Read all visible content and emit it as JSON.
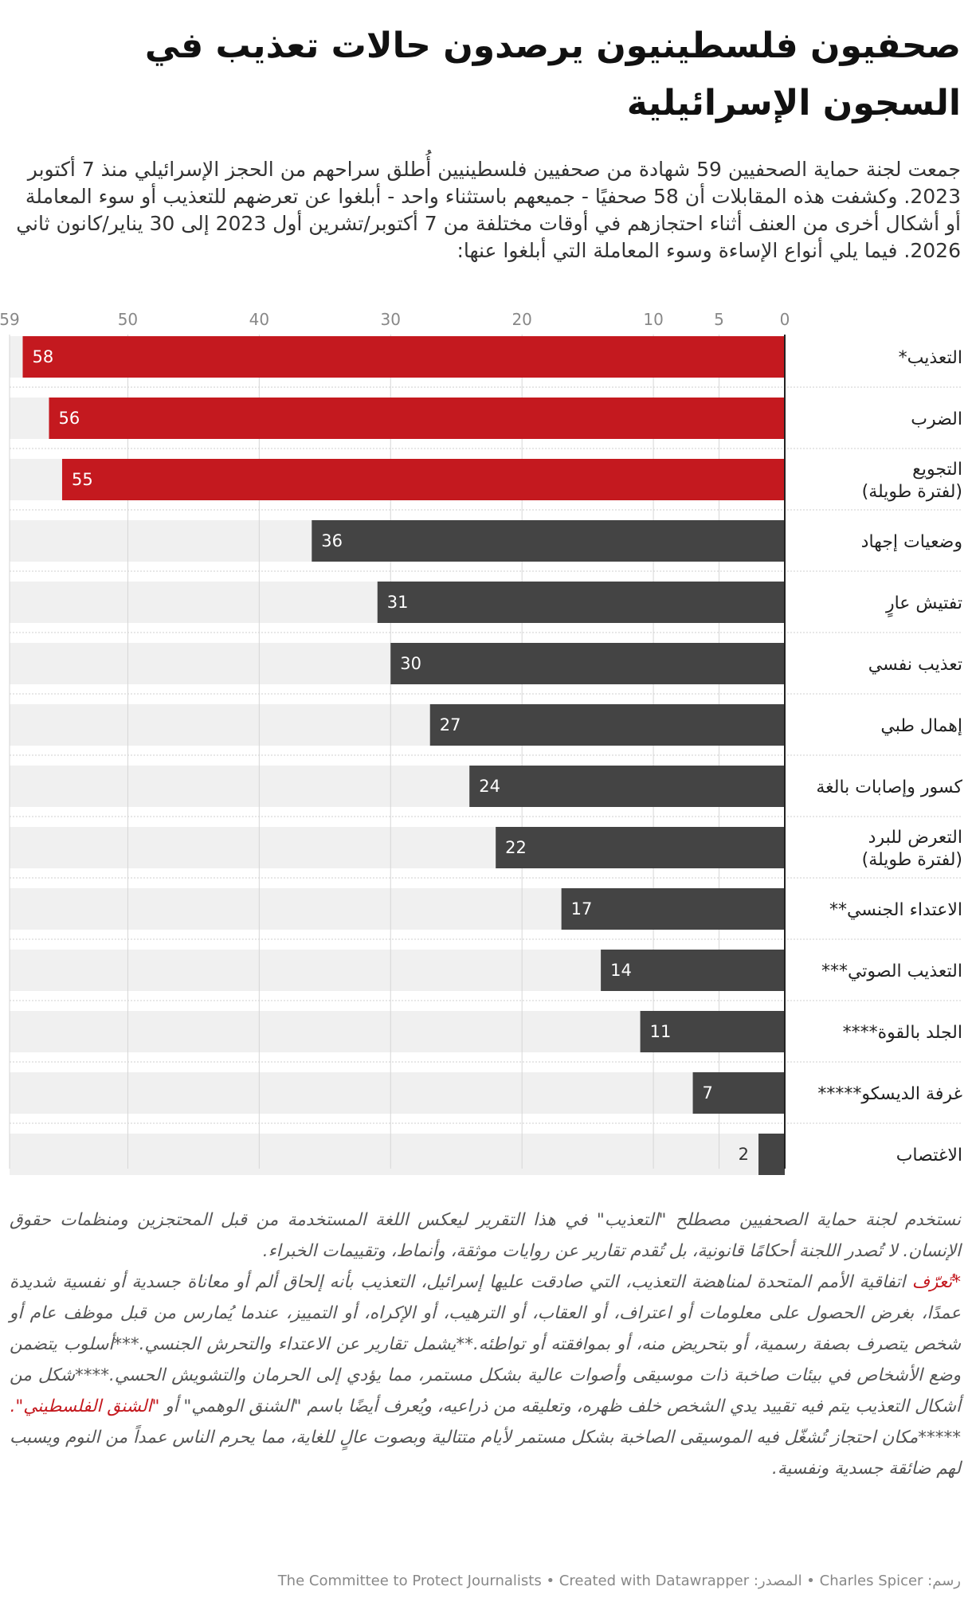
{
  "title": "صحفيون فلسطينيون يرصدون حالات تعذيب في السجون الإسرائيلية",
  "description": "جمعت لجنة حماية الصحفيين 59 شهادة من صحفيين فلسطينيين أُطلق سراحهم من الحجز الإسرائيلي منذ 7 أكتوبر 2023. وكشفت هذه المقابلات أن 58 صحفيًا - جميعهم باستثناء واحد - أبلغوا عن تعرضهم للتعذيب أو سوء المعاملة أو أشكال أخرى من العنف أثناء احتجازهم في أوقات مختلفة من 7 أكتوبر/تشرين أول 2023 إلى 30 يناير/كانون ثاني 2026. فيما يلي أنواع الإساءة وسوء المعاملة التي أبلغوا عنها:",
  "colors": {
    "highlight": "#c4191f",
    "bar": "#444444",
    "track": "#f0f0f0"
  },
  "chart_data": {
    "type": "bar",
    "orientation": "horizontal",
    "xlim": [
      0,
      59
    ],
    "ticks": [
      0,
      5,
      10,
      20,
      30,
      40,
      50,
      59
    ],
    "max_value": 59,
    "categories": [
      "التعذيب*",
      "الضرب",
      "التجويع\n(لفترة طويلة)",
      "وضعيات إجهاد",
      "تفتيش عارٍ",
      "تعذيب نفسي",
      "إهمال طبي",
      "كسور وإصابات بالغة",
      "التعرض للبرد\n(لفترة طويلة)",
      "الاعتداء الجنسي**",
      "التعذيب الصوتي***",
      "الجلد بالقوة****",
      "غرفة الديسكو*****",
      "الاغتصاب"
    ],
    "values": [
      58,
      56,
      55,
      36,
      31,
      30,
      27,
      24,
      22,
      17,
      14,
      11,
      7,
      2
    ],
    "highlighted": [
      true,
      true,
      true,
      false,
      false,
      false,
      false,
      false,
      false,
      false,
      false,
      false,
      false,
      false
    ]
  },
  "notes": {
    "intro": "نستخدم لجنة حماية الصحفيين مصطلح \"التعذيب\" في هذا التقرير ليعكس اللغة المستخدمة من قبل المحتجزين ومنظمات حقوق الإنسان. لا تُصدر اللجنة أحكامًا قانونية، بل تُقدم تقارير عن روايات موثقة، وأنماط، وتقييمات الخبراء.",
    "def_prefix": "*تُعرّف",
    "def_body": " اتفاقية الأمم المتحدة لمناهضة التعذيب، التي صادقت عليها إسرائيل، التعذيب بأنه إلحاق ألم أو معاناة جسدية أو نفسية شديدة عمدًا، بغرض الحصول على معلومات أو اعتراف، أو العقاب، أو الترهيب، أو الإكراه، أو التمييز، عندما يُمارس من قبل موظف عام أو شخص يتصرف بصفة رسمية، أو بتحريض منه، أو بموافقته أو تواطئه.**يشمل تقارير عن الاعتداء والتحرش الجنسي.***أسلوب يتضمن وضع الأشخاص في بيئات صاخبة ذات موسيقى وأصوات عالية بشكل مستمر، مما يؤدي إلى الحرمان والتشويش الحسي.****شكل من أشكال التعذيب يتم فيه تقييد يدي الشخص خلف ظهره، وتعليقه من ذراعيه، ويُعرف أيضًا باسم \"الشنق الوهمي\" أو ",
    "def_link": "\"الشنق الفلسطيني\".",
    "disco": "*****مكان احتجاز تُشغّل فيه الموسيقى الصاخبة بشكل مستمر لأيام متتالية وبصوت عالٍ للغاية، مما يحرم الناس عمداً من النوم ويسبب لهم ضائقة جسدية ونفسية."
  },
  "footer": "رسم: Charles Spicer • المصدر: The Committee to Protect Journalists • Created with Datawrapper"
}
